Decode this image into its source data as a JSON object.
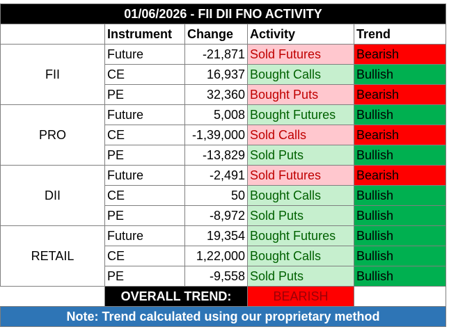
{
  "title": "01/06/2026 - FII DII FNO ACTIVITY",
  "headers": [
    "Instrument",
    "Change",
    "Activity",
    "Trend"
  ],
  "groups": [
    {
      "name": "FII",
      "rows": [
        [
          "Future",
          "-21,871",
          "Sold Futures",
          "Bearish"
        ],
        [
          "CE",
          "16,937",
          "Bought Calls",
          "Bullish"
        ],
        [
          "PE",
          "32,360",
          "Bought Puts",
          "Bearish"
        ]
      ]
    },
    {
      "name": "PRO",
      "rows": [
        [
          "Future",
          "5,008",
          "Bought Futures",
          "Bullish"
        ],
        [
          "CE",
          "-1,39,000",
          "Sold Calls",
          "Bearish"
        ],
        [
          "PE",
          "-13,829",
          "Sold Puts",
          "Bullish"
        ]
      ]
    },
    {
      "name": "DII",
      "rows": [
        [
          "Future",
          "-2,491",
          "Sold Futures",
          "Bearish"
        ],
        [
          "CE",
          "50",
          "Bought Calls",
          "Bullish"
        ],
        [
          "PE",
          "-8,972",
          "Sold Puts",
          "Bullish"
        ]
      ]
    },
    {
      "name": "RETAIL",
      "rows": [
        [
          "Future",
          "19,354",
          "Bought Futures",
          "Bullish"
        ],
        [
          "CE",
          "1,22,000",
          "Bought Calls",
          "Bullish"
        ],
        [
          "PE",
          "-9,558",
          "Sold Puts",
          "Bullish"
        ]
      ]
    }
  ],
  "overall": {
    "label": "OVERALL TREND:",
    "value": "BEARISH"
  },
  "note": "Note: Trend calculated using our proprietary method"
}
